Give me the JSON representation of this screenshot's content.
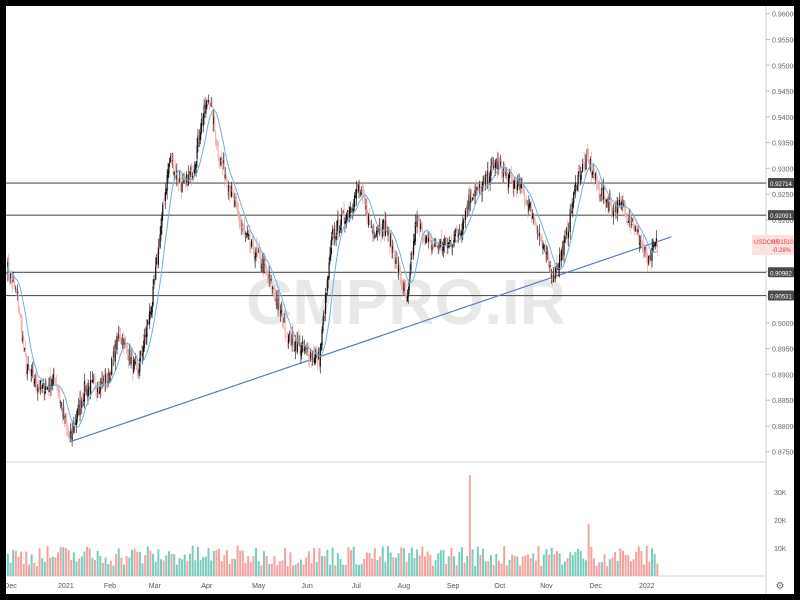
{
  "chart_data": {
    "type": "candlestick",
    "symbol": "USDCHF",
    "last_price": "0.91510",
    "change": "-0.28%",
    "watermark": "CMPRO.IR",
    "price_ticks": [
      "0.96000",
      "0.95500",
      "0.95000",
      "0.94500",
      "0.94000",
      "0.93500",
      "0.93000",
      "0.92500",
      "0.92000",
      "0.91500",
      "0.91000",
      "0.90500",
      "0.90000",
      "0.89500",
      "0.89000",
      "0.88500",
      "0.88000",
      "0.87500"
    ],
    "ylim": [
      0.873,
      0.9615
    ],
    "volume_ticks": [
      "30K",
      "20K",
      "10K"
    ],
    "volume_ylim": [
      0,
      40000
    ],
    "x_labels": [
      "Dec",
      "2021",
      "Feb",
      "Mar",
      "Apr",
      "May",
      "Jun",
      "Jul",
      "Aug",
      "Sep",
      "Oct",
      "Nov",
      "Dec",
      "2022"
    ],
    "x_label_bars": [
      4,
      67,
      117,
      168,
      227,
      286,
      341,
      397,
      451,
      507,
      560,
      613,
      669,
      727
    ],
    "horizontal_levels": [
      {
        "label": "0.92714",
        "value": 0.92714
      },
      {
        "label": "0.92091",
        "value": 0.92091
      },
      {
        "label": "0.90982",
        "value": 0.90982
      },
      {
        "label": "0.90531",
        "value": 0.90531
      }
    ],
    "trendline": {
      "from": {
        "bar": 71,
        "value": 0.8769
      },
      "to": {
        "bar": 755,
        "value": 0.9167
      }
    },
    "anchors": [
      [
        0,
        0.911
      ],
      [
        12,
        0.905
      ],
      [
        22,
        0.891
      ],
      [
        40,
        0.887
      ],
      [
        55,
        0.889
      ],
      [
        71,
        0.877
      ],
      [
        88,
        0.887
      ],
      [
        115,
        0.889
      ],
      [
        128,
        0.898
      ],
      [
        148,
        0.89
      ],
      [
        165,
        0.904
      ],
      [
        178,
        0.923
      ],
      [
        185,
        0.932
      ],
      [
        200,
        0.926
      ],
      [
        212,
        0.93
      ],
      [
        221,
        0.939
      ],
      [
        230,
        0.944
      ],
      [
        240,
        0.933
      ],
      [
        252,
        0.927
      ],
      [
        265,
        0.919
      ],
      [
        280,
        0.914
      ],
      [
        292,
        0.911
      ],
      [
        305,
        0.905
      ],
      [
        320,
        0.897
      ],
      [
        335,
        0.895
      ],
      [
        355,
        0.893
      ],
      [
        370,
        0.917
      ],
      [
        385,
        0.921
      ],
      [
        400,
        0.926
      ],
      [
        415,
        0.918
      ],
      [
        430,
        0.919
      ],
      [
        442,
        0.912
      ],
      [
        455,
        0.904
      ],
      [
        465,
        0.92
      ],
      [
        480,
        0.915
      ],
      [
        500,
        0.915
      ],
      [
        515,
        0.918
      ],
      [
        527,
        0.925
      ],
      [
        540,
        0.926
      ],
      [
        555,
        0.931
      ],
      [
        570,
        0.928
      ],
      [
        585,
        0.926
      ],
      [
        600,
        0.92
      ],
      [
        610,
        0.914
      ],
      [
        621,
        0.909
      ],
      [
        635,
        0.916
      ],
      [
        648,
        0.928
      ],
      [
        660,
        0.932
      ],
      [
        672,
        0.926
      ],
      [
        690,
        0.922
      ],
      [
        700,
        0.923
      ],
      [
        712,
        0.919
      ],
      [
        722,
        0.915
      ],
      [
        730,
        0.911
      ],
      [
        736,
        0.9151
      ]
    ],
    "volume_spikes": [
      {
        "bar": 527,
        "value": 36000
      },
      {
        "bar": 663,
        "value": 18500
      }
    ]
  }
}
